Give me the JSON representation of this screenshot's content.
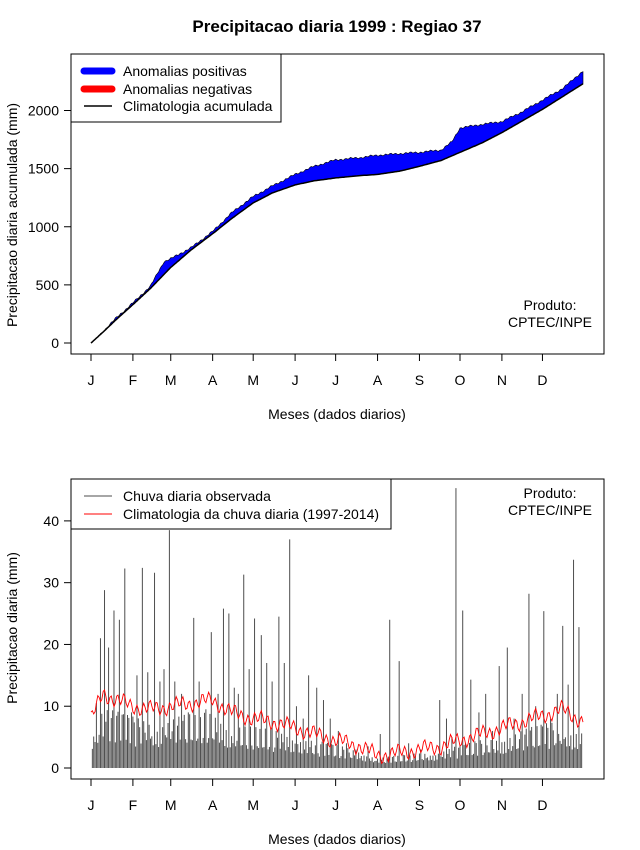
{
  "title": "Precipitacao diaria 1999 : Regiao 37",
  "colors": {
    "positive": "#0000ff",
    "negative": "#ff0000",
    "climatology": "#000000",
    "observed": "#4d4d4d",
    "clim_daily": "#ff0000"
  },
  "months": [
    "J",
    "F",
    "M",
    "A",
    "M",
    "J",
    "J",
    "A",
    "S",
    "O",
    "N",
    "D"
  ],
  "month_start_days": [
    1,
    32,
    60,
    91,
    121,
    152,
    182,
    213,
    244,
    274,
    305,
    335
  ],
  "chart_data": [
    {
      "type": "area",
      "title": "Precipitacao diaria 1999 : Regiao 37",
      "xlabel": "Meses (dados diarios)",
      "ylabel": "Precipitacao diaria acumulada (mm)",
      "xlim": [
        1,
        365
      ],
      "ylim": [
        0,
        2400
      ],
      "yticks": [
        0,
        500,
        1000,
        1500,
        2000
      ],
      "legend_position": "top-left",
      "legend": [
        "Anomalias positivas",
        "Anomalias negativas",
        "Climatologia acumulada"
      ],
      "annotation": [
        "Produto:",
        "CPTEC/INPE"
      ],
      "climatology_cumulative_day": [
        1,
        10,
        20,
        32,
        45,
        60,
        75,
        91,
        105,
        121,
        135,
        152,
        166,
        182,
        200,
        213,
        230,
        244,
        260,
        274,
        290,
        305,
        320,
        335,
        350,
        365
      ],
      "climatology_cumulative_mm": [
        0,
        95,
        205,
        330,
        470,
        650,
        800,
        940,
        1070,
        1205,
        1290,
        1360,
        1395,
        1420,
        1440,
        1450,
        1480,
        1520,
        1570,
        1640,
        1720,
        1810,
        1910,
        2010,
        2120,
        2230
      ],
      "observed_cumulative_day": [
        1,
        10,
        20,
        32,
        45,
        55,
        60,
        75,
        91,
        105,
        121,
        135,
        152,
        166,
        182,
        200,
        213,
        230,
        244,
        260,
        268,
        274,
        290,
        305,
        320,
        335,
        350,
        358,
        365
      ],
      "observed_cumulative_mm": [
        0,
        100,
        220,
        345,
        490,
        700,
        725,
        820,
        960,
        1120,
        1260,
        1350,
        1450,
        1520,
        1575,
        1595,
        1615,
        1630,
        1640,
        1660,
        1730,
        1850,
        1880,
        1905,
        1990,
        2090,
        2190,
        2270,
        2340
      ]
    },
    {
      "type": "line",
      "xlabel": "Meses (dados diarios)",
      "ylabel": "Precipitacao diaria (mm)",
      "xlim": [
        1,
        365
      ],
      "ylim": [
        0,
        45
      ],
      "yticks": [
        0,
        10,
        20,
        30,
        40
      ],
      "legend_position": "top-left",
      "legend": [
        "Chuva diaria observada",
        "Climatologia da chuva diaria (1997-2014)"
      ],
      "annotation": [
        "Produto:",
        "CPTEC/INPE"
      ],
      "series": [
        {
          "name": "Chuva diaria observada",
          "peaks_day": [
            5,
            8,
            11,
            14,
            18,
            22,
            26,
            31,
            35,
            39,
            43,
            48,
            52,
            55,
            59,
            63,
            68,
            73,
            77,
            81,
            86,
            90,
            95,
            99,
            103,
            107,
            110,
            114,
            118,
            122,
            127,
            131,
            135,
            140,
            144,
            148,
            153,
            158,
            162,
            168,
            173,
            178,
            184,
            190,
            197,
            206,
            215,
            222,
            229,
            236,
            245,
            252,
            259,
            264,
            268,
            271,
            276,
            282,
            288,
            293,
            298,
            303,
            309,
            314,
            320,
            325,
            330,
            336,
            341,
            346,
            350,
            354,
            358,
            362
          ],
          "peaks_mm": [
            10.5,
            21,
            28.8,
            19.5,
            25.5,
            24,
            32.3,
            9,
            15,
            32.4,
            15.5,
            31.6,
            14,
            16,
            38.5,
            14,
            12,
            9,
            24.3,
            14,
            9.5,
            22,
            12,
            25.8,
            25,
            13,
            12,
            31.3,
            16,
            24.2,
            21.5,
            17,
            14,
            24.5,
            17,
            37,
            10,
            8,
            15,
            13,
            11,
            8,
            6,
            4,
            3,
            3.5,
            5.5,
            24,
            17.3,
            4,
            3,
            2,
            11,
            8,
            5,
            45.3,
            25.5,
            14.3,
            9,
            12,
            6,
            16.5,
            19.5,
            8,
            12,
            28.2,
            10,
            25.4,
            8,
            12,
            23,
            13.5,
            33.7,
            22.8
          ]
        },
        {
          "name": "Climatologia da chuva diaria (1997-2014)",
          "day": [
            1,
            10,
            20,
            32,
            45,
            60,
            75,
            91,
            105,
            121,
            135,
            152,
            166,
            182,
            200,
            213,
            230,
            244,
            260,
            274,
            290,
            305,
            320,
            335,
            350,
            365
          ],
          "mm": [
            8,
            12,
            11,
            10,
            9.5,
            10,
            10.5,
            11,
            9,
            8,
            7.5,
            6.5,
            5.5,
            4.5,
            3.5,
            2,
            2.5,
            3,
            3.5,
            4.5,
            5.5,
            6.5,
            7.5,
            8.5,
            9.5,
            7.5
          ]
        }
      ]
    }
  ]
}
